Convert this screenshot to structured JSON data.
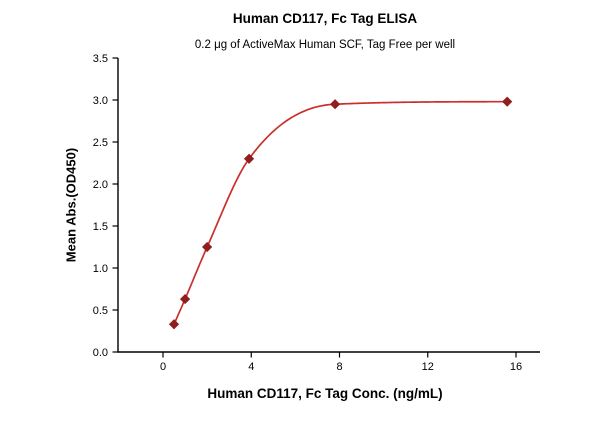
{
  "header": {
    "title": "Human CD117, Fc Tag ELISA",
    "subtitle": "0.2 μg of ActiveMax Human SCF, Tag Free per well"
  },
  "chart_data": {
    "type": "scatter",
    "title": "Human CD117, Fc Tag ELISA",
    "subtitle": "0.2 μg of ActiveMax Human SCF, Tag Free per well",
    "xlabel": "Human CD117, Fc Tag Conc. (ng/mL)",
    "ylabel": "Mean Abs.(OD450)",
    "x": [
      0.5,
      1,
      2,
      3.9,
      7.8,
      15.6
    ],
    "y": [
      0.33,
      0.63,
      1.25,
      2.3,
      2.95,
      2.98
    ],
    "fit": "smooth sigmoidal curve through points",
    "xlim": [
      0,
      16
    ],
    "ylim": [
      0,
      3.5
    ],
    "xticks": [
      0,
      4,
      8,
      12,
      16
    ],
    "yticks": [
      0,
      0.5,
      1,
      1.5,
      2,
      2.5,
      3,
      3.5
    ],
    "grid": false,
    "legend": null,
    "marker": "diamond",
    "colors": {
      "curve": "#c9302c",
      "marker": "#8f1f1f",
      "axis": "#000000"
    }
  }
}
